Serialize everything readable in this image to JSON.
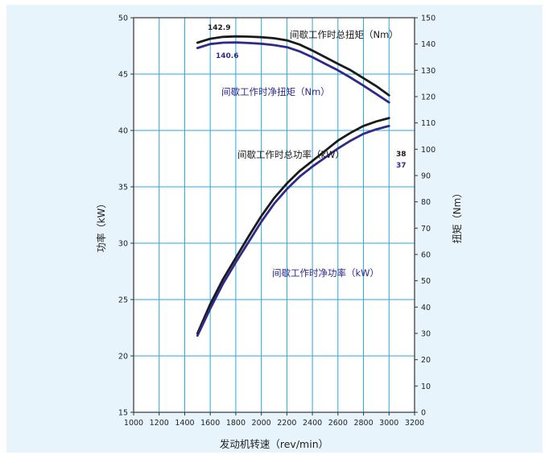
{
  "chart_data": {
    "type": "line",
    "colors": {
      "background": "#e8f4fb",
      "plot_bg": "#ffffff",
      "grid": "#29a6df",
      "frame": "#333333",
      "gross": "#1a1a1a",
      "net": "#2e2a8a"
    },
    "xlabel": "发动机转速（rev/min）",
    "ylabel_left": "功率（kW）",
    "ylabel_right": "扭矩（Nm）",
    "xlim": [
      1000,
      3200
    ],
    "ylim_left": [
      15,
      50
    ],
    "ylim_right": [
      0,
      150
    ],
    "x_ticks": [
      "1000",
      "1200",
      "1400",
      "1600",
      "1800",
      "2000",
      "2200",
      "2400",
      "2600",
      "2800",
      "3000",
      "3200"
    ],
    "y_left_ticks": [
      "15",
      "20",
      "25",
      "30",
      "35",
      "40",
      "45",
      "50"
    ],
    "y_right_ticks": [
      "0",
      "10",
      "20",
      "30",
      "40",
      "50",
      "60",
      "70",
      "80",
      "90",
      "100",
      "110",
      "120",
      "130",
      "140",
      "150"
    ],
    "grid": true,
    "series": [
      {
        "name": "间歇工作时总扭矩（Nm）",
        "axis": "right",
        "style": "gross",
        "x": [
          1500,
          1600,
          1700,
          1800,
          1900,
          2000,
          2100,
          2200,
          2300,
          2400,
          2500,
          2600,
          2700,
          2800,
          2900,
          3000
        ],
        "values": [
          140.5,
          142.0,
          142.7,
          142.9,
          142.8,
          142.6,
          142.2,
          141.4,
          139.8,
          137.5,
          135.0,
          132.5,
          130.0,
          127.0,
          124.0,
          120.5
        ]
      },
      {
        "name": "间歇工作时净扭矩（Nm）",
        "axis": "right",
        "style": "net",
        "x": [
          1500,
          1600,
          1700,
          1800,
          1900,
          2000,
          2100,
          2200,
          2300,
          2400,
          2500,
          2600,
          2700,
          2800,
          2900,
          3000
        ],
        "values": [
          138.5,
          140.0,
          140.5,
          140.6,
          140.4,
          140.1,
          139.6,
          138.8,
          137.2,
          135.0,
          132.5,
          130.0,
          127.2,
          124.2,
          121.0,
          117.8
        ]
      },
      {
        "name": "间歇工作时总功率（kW）",
        "axis": "left",
        "style": "gross",
        "x": [
          1500,
          1600,
          1700,
          1800,
          1900,
          2000,
          2100,
          2200,
          2300,
          2400,
          2500,
          2600,
          2700,
          2800,
          2900,
          3000
        ],
        "values": [
          22.0,
          24.6,
          26.8,
          28.7,
          30.6,
          32.4,
          34.0,
          35.3,
          36.4,
          37.3,
          38.2,
          39.1,
          39.8,
          40.4,
          40.8,
          41.1
        ]
      },
      {
        "name": "间歇工作时净功率（kW）",
        "axis": "left",
        "style": "net",
        "x": [
          1500,
          1600,
          1700,
          1800,
          1900,
          2000,
          2100,
          2200,
          2300,
          2400,
          2500,
          2600,
          2700,
          2800,
          2900,
          3000
        ],
        "values": [
          21.8,
          24.2,
          26.4,
          28.3,
          30.1,
          31.9,
          33.5,
          34.8,
          35.9,
          36.8,
          37.6,
          38.4,
          39.1,
          39.7,
          40.1,
          40.4
        ]
      }
    ],
    "annotations": [
      {
        "text": "142.9",
        "kind": "value"
      },
      {
        "text": "140.6",
        "kind": "value"
      },
      {
        "text": "38",
        "kind": "value"
      },
      {
        "text": "37",
        "kind": "value"
      }
    ]
  }
}
